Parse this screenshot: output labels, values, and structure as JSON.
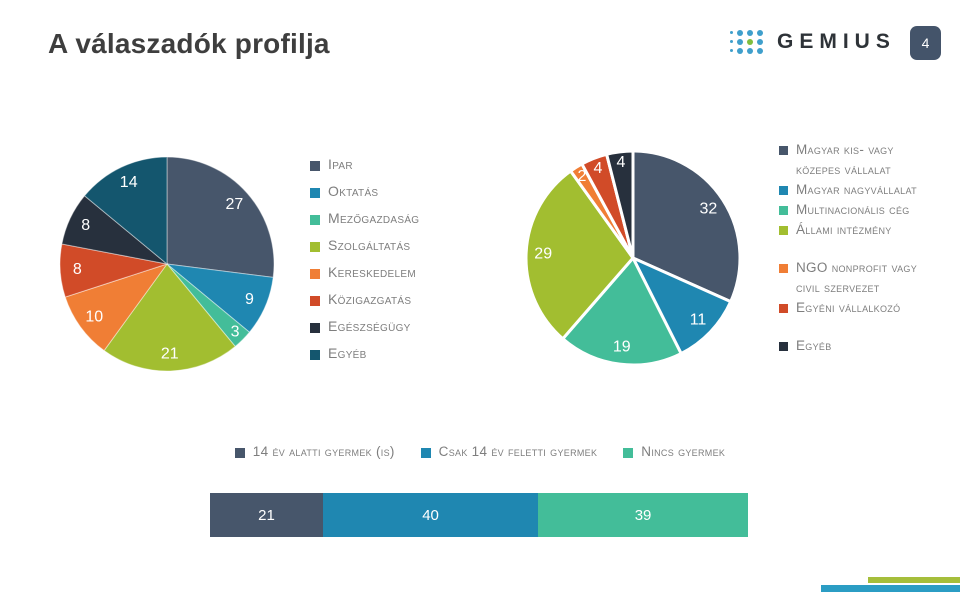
{
  "slide": {
    "title": "A válaszadók profilja",
    "page_number": "4"
  },
  "logo": {
    "wordmark": "GEMIUS",
    "dot_color": "#3F9FCC",
    "accent_dot_color": "#7FBE3F",
    "wordmark_color": "#2E3338"
  },
  "palette": {
    "slate": "#47566B",
    "blue": "#1F87B1",
    "teal": "#43BD99",
    "olive": "#A2BE30",
    "orange": "#F07E35",
    "red": "#D14B28",
    "navy": "#27303D",
    "darkteal": "#14566E",
    "legend_text": "#7E7E7E",
    "title_text": "#3E3E3E",
    "badge_bg": "#44546A"
  },
  "footer": {
    "accent_green": "#A5BE3B",
    "accent_blue": "#2B9DC4"
  },
  "chart_data": [
    {
      "type": "pie",
      "name": "respondent-sector-pie",
      "categories": [
        "Ipar",
        "Oktatás",
        "Mezőgazdaság",
        "Szolgáltatás",
        "Kereskedelem",
        "Közigazgatás",
        "Egészségügy",
        "Egyéb"
      ],
      "values": [
        27,
        9,
        3,
        21,
        10,
        8,
        8,
        14
      ],
      "colors": [
        "#47566B",
        "#1F87B1",
        "#43BD99",
        "#A2BE30",
        "#F07E35",
        "#D14B28",
        "#27303D",
        "#14566E"
      ],
      "start_angle_deg": 0,
      "direction": "clockwise",
      "labels": "values-inside-white",
      "slice_border_color": "rgba(255,255,255,0.45)",
      "slice_border_px": 1,
      "legend_position": "right"
    },
    {
      "type": "pie",
      "name": "company-type-pie",
      "categories": [
        "Magyar kis- vagy közepes vállalat",
        "Magyar nagyvállalat",
        "Multinacionális cég",
        "Állami intézmény",
        "NGO nonprofit vagy civil szervezet",
        "Egyéni vállalkozó",
        "Egyéb"
      ],
      "values": [
        32,
        11,
        19,
        29,
        2,
        4,
        4
      ],
      "colors": [
        "#47566B",
        "#1F87B1",
        "#43BD99",
        "#A2BE30",
        "#F07E35",
        "#D14B28",
        "#27303D"
      ],
      "start_angle_deg": 0,
      "direction": "clockwise",
      "labels": "values-inside-white",
      "slice_border_color": "#ffffff",
      "slice_border_px": 3,
      "legend_position": "right",
      "legend_gap_before": [
        4,
        6
      ]
    },
    {
      "type": "bar",
      "name": "children-stacked-bar",
      "stacked": true,
      "orientation": "horizontal",
      "categories": [
        "14 év alatti gyermek (is)",
        "Csak 14 év feletti gyermek",
        "Nincs gyermek"
      ],
      "values": [
        21,
        40,
        39
      ],
      "colors": [
        "#47566B",
        "#1F87B1",
        "#43BD99"
      ],
      "labels": "values-inside-white",
      "legend_position": "top-center",
      "xlim": [
        0,
        100
      ],
      "grid": false
    }
  ]
}
